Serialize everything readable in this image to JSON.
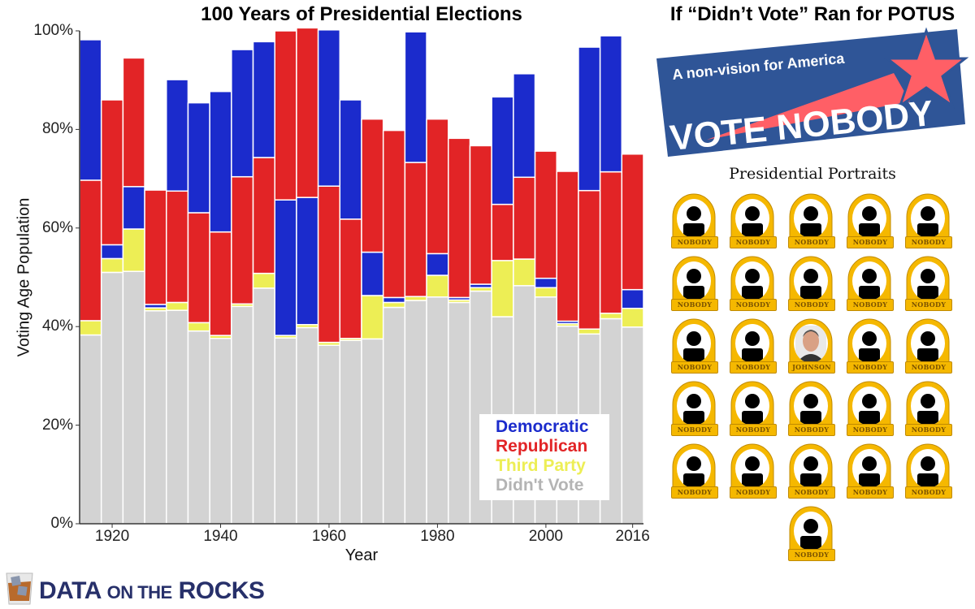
{
  "left_title": "100 Years of Presidential Elections",
  "right_title": "If “Didn’t Vote” Ran for POTUS",
  "banner": {
    "tagline": "A non-vision for America",
    "headline": "VOTE NOBODY",
    "colors": {
      "background": "#2f5597",
      "star": "#ff5f66",
      "text": "#ffffff"
    }
  },
  "portraits": {
    "title": "Presidential Portraits",
    "labels": [
      "NOBODY",
      "NOBODY",
      "NOBODY",
      "NOBODY",
      "NOBODY",
      "NOBODY",
      "NOBODY",
      "NOBODY",
      "NOBODY",
      "NOBODY",
      "NOBODY",
      "NOBODY",
      "JOHNSON",
      "NOBODY",
      "NOBODY",
      "NOBODY",
      "NOBODY",
      "NOBODY",
      "NOBODY",
      "NOBODY",
      "NOBODY",
      "NOBODY",
      "NOBODY",
      "NOBODY",
      "NOBODY",
      "NOBODY"
    ],
    "frame_color": "#f5b800"
  },
  "logo": {
    "text_big": "DATA",
    "text_small": "ON THE",
    "text_big2": "ROCKS"
  },
  "chart_data": {
    "type": "bar",
    "stacked": true,
    "stack_order_note_visible": "bottom to top: Didn't Vote, Third Party, losing party, winning party",
    "xlabel": "Year",
    "ylabel": "Voting Age Population",
    "ylim": [
      0,
      100
    ],
    "yticks": [
      "0%",
      "20%",
      "40%",
      "60%",
      "80%",
      "100%"
    ],
    "xticks": [
      "1920",
      "1940",
      "1960",
      "1980",
      "2000",
      "2016"
    ],
    "legend_position": "bottom-right",
    "categories": [
      1916,
      1920,
      1924,
      1928,
      1932,
      1936,
      1940,
      1944,
      1948,
      1952,
      1956,
      1960,
      1964,
      1968,
      1972,
      1976,
      1980,
      1984,
      1988,
      1992,
      1996,
      2000,
      2004,
      2008,
      2012,
      2016
    ],
    "winner": [
      "D",
      "R",
      "R",
      "R",
      "D",
      "D",
      "D",
      "D",
      "D",
      "R",
      "R",
      "D",
      "D",
      "R",
      "R",
      "D",
      "R",
      "R",
      "R",
      "D",
      "D",
      "R",
      "R",
      "D",
      "D",
      "R"
    ],
    "series": [
      {
        "name": "Democratic",
        "key": "D",
        "color": "#1b2bcc",
        "values": [
          28.5,
          2.8,
          8.6,
          0.7,
          22.6,
          22.3,
          28.5,
          25.8,
          23.5,
          27.5,
          25.8,
          31.7,
          24.2,
          8.8,
          1.0,
          26.5,
          4.4,
          0.5,
          0.7,
          21.8,
          21.0,
          1.9,
          0.5,
          29.1,
          27.6,
          3.8
        ]
      },
      {
        "name": "Republican",
        "key": "R",
        "color": "#e22426",
        "values": [
          28.5,
          29.4,
          26.1,
          23.2,
          22.6,
          22.3,
          21.0,
          25.8,
          23.5,
          34.3,
          34.4,
          31.7,
          24.2,
          27.0,
          33.9,
          27.2,
          27.3,
          32.3,
          28.1,
          11.4,
          16.6,
          25.8,
          30.4,
          28.1,
          28.7,
          27.5
        ]
      },
      {
        "name": "Third Party",
        "key": "T",
        "color": "#edee55",
        "values": [
          2.9,
          2.8,
          8.6,
          0.6,
          1.6,
          1.7,
          0.6,
          0.5,
          3.0,
          0.5,
          0.6,
          0.6,
          0.4,
          8.8,
          1.0,
          0.8,
          4.4,
          0.5,
          0.7,
          11.4,
          5.4,
          1.9,
          0.5,
          1.0,
          1.1,
          3.8
        ]
      },
      {
        "name": "Didn't Vote",
        "key": "N",
        "color": "#d3d3d3",
        "values": [
          38.3,
          51.0,
          51.2,
          43.2,
          43.3,
          39.1,
          37.6,
          44.1,
          47.8,
          37.7,
          39.8,
          36.2,
          37.2,
          37.5,
          43.9,
          45.3,
          46.0,
          44.9,
          47.2,
          42.0,
          48.3,
          46.0,
          40.1,
          38.5,
          41.6,
          39.9
        ]
      }
    ]
  }
}
